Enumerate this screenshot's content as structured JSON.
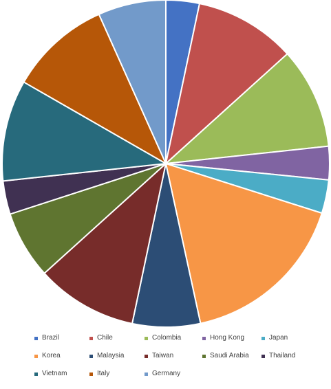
{
  "chart_data": {
    "type": "pie",
    "title": "",
    "start_angle_deg": 0,
    "direction": "clockwise",
    "legend_position": "bottom",
    "slices": [
      {
        "label": "Brazil",
        "value": 3.3,
        "color": "#4472C4"
      },
      {
        "label": "Chile",
        "value": 10.0,
        "color": "#C0504D"
      },
      {
        "label": "Colombia",
        "value": 10.0,
        "color": "#9BBB59"
      },
      {
        "label": "Hong Kong",
        "value": 3.3,
        "color": "#8064A2"
      },
      {
        "label": "Japan",
        "value": 3.3,
        "color": "#4BACC6"
      },
      {
        "label": "Korea",
        "value": 16.7,
        "color": "#F79646"
      },
      {
        "label": "Malaysia",
        "value": 6.7,
        "color": "#2C4D75"
      },
      {
        "label": "Taiwan",
        "value": 10.0,
        "color": "#772C2A"
      },
      {
        "label": "Saudi Arabia",
        "value": 6.7,
        "color": "#5F7530"
      },
      {
        "label": "Thailand",
        "value": 3.3,
        "color": "#403152"
      },
      {
        "label": "Vietnam",
        "value": 10.0,
        "color": "#276A7C"
      },
      {
        "label": "Italy",
        "value": 10.0,
        "color": "#B65708"
      },
      {
        "label": "Germany",
        "value": 6.7,
        "color": "#729ACA"
      }
    ]
  }
}
